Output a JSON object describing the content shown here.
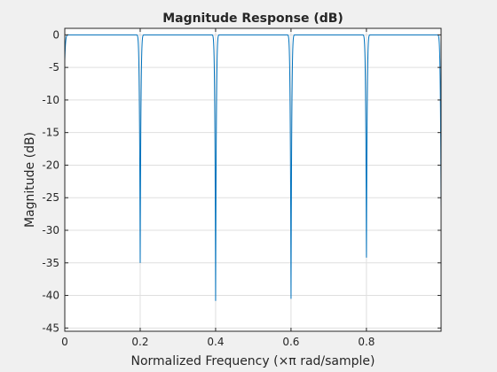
{
  "chart_data": {
    "type": "line",
    "title": "Magnitude Response (dB)",
    "xlabel": "Normalized Frequency  (×π rad/sample)",
    "ylabel": "Magnitude (dB)",
    "xlim": [
      0,
      0.998
    ],
    "ylim": [
      -45.5,
      1
    ],
    "grid": true,
    "x_ticks": [
      0,
      0.2,
      0.4,
      0.6,
      0.8
    ],
    "x_tick_labels": [
      "0",
      "0.2",
      "0.4",
      "0.6",
      "0.8"
    ],
    "y_ticks": [
      0,
      -5,
      -10,
      -15,
      -20,
      -25,
      -30,
      -35,
      -40,
      -45
    ],
    "y_tick_labels": [
      "0",
      "-5",
      "-10",
      "-15",
      "-20",
      "-25",
      "-30",
      "-35",
      "-40",
      "-45"
    ],
    "colors": {
      "line": "#0072bd",
      "grid": "#dfdfdf",
      "axes": "#262626",
      "plot_bg": "#ffffff",
      "figure_bg": "#f0f0f0"
    },
    "series": [
      {
        "notches": [
          {
            "x": 0.0,
            "depth": -4.0
          },
          {
            "x": 0.2,
            "depth": -35.3
          },
          {
            "x": 0.4,
            "depth": -41.5
          },
          {
            "x": 0.6,
            "depth": -41.5
          },
          {
            "x": 0.8,
            "depth": -35.3
          },
          {
            "x": 0.998,
            "depth": -27.0
          }
        ],
        "passband_level": 0,
        "notch_half_width": 0.012
      }
    ]
  }
}
